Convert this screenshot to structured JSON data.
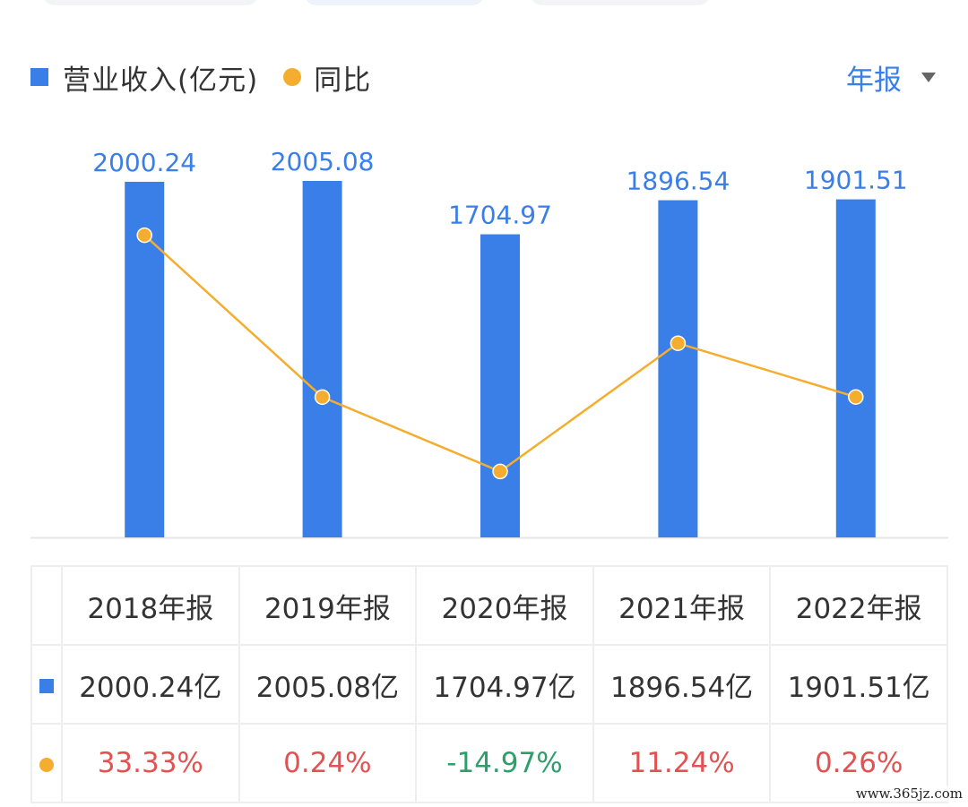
{
  "legend": {
    "revenue_label": "营业收入(亿元)",
    "yoy_label": "同比"
  },
  "period_select": {
    "label": "年报"
  },
  "colors": {
    "bar": "#3a7ee8",
    "line": "#f5ad2f",
    "positive": "#e15353",
    "negative": "#2e9e6a"
  },
  "chart_data": {
    "type": "bar",
    "categories": [
      "2018年报",
      "2019年报",
      "2020年报",
      "2021年报",
      "2022年报"
    ],
    "series": [
      {
        "name": "营业收入(亿元)",
        "type": "bar",
        "values": [
          2000.24,
          2005.08,
          1704.97,
          1896.54,
          1901.51
        ],
        "labels": [
          "2000.24",
          "2005.08",
          "1704.97",
          "1896.54",
          "1901.51"
        ]
      },
      {
        "name": "同比",
        "type": "line",
        "values": [
          33.33,
          0.24,
          -14.97,
          11.24,
          0.26
        ]
      }
    ],
    "ylim": [
      0,
      2005.08
    ],
    "y2lim": [
      -31.56,
      49.92
    ]
  },
  "table": {
    "headers": [
      "2018年报",
      "2019年报",
      "2020年报",
      "2021年报",
      "2022年报"
    ],
    "revenue": [
      "2000.24亿",
      "2005.08亿",
      "1704.97亿",
      "1896.54亿",
      "1901.51亿"
    ],
    "yoy": [
      "33.33%",
      "0.24%",
      "-14.97%",
      "11.24%",
      "0.26%"
    ]
  },
  "watermark": "www.365jz.com"
}
